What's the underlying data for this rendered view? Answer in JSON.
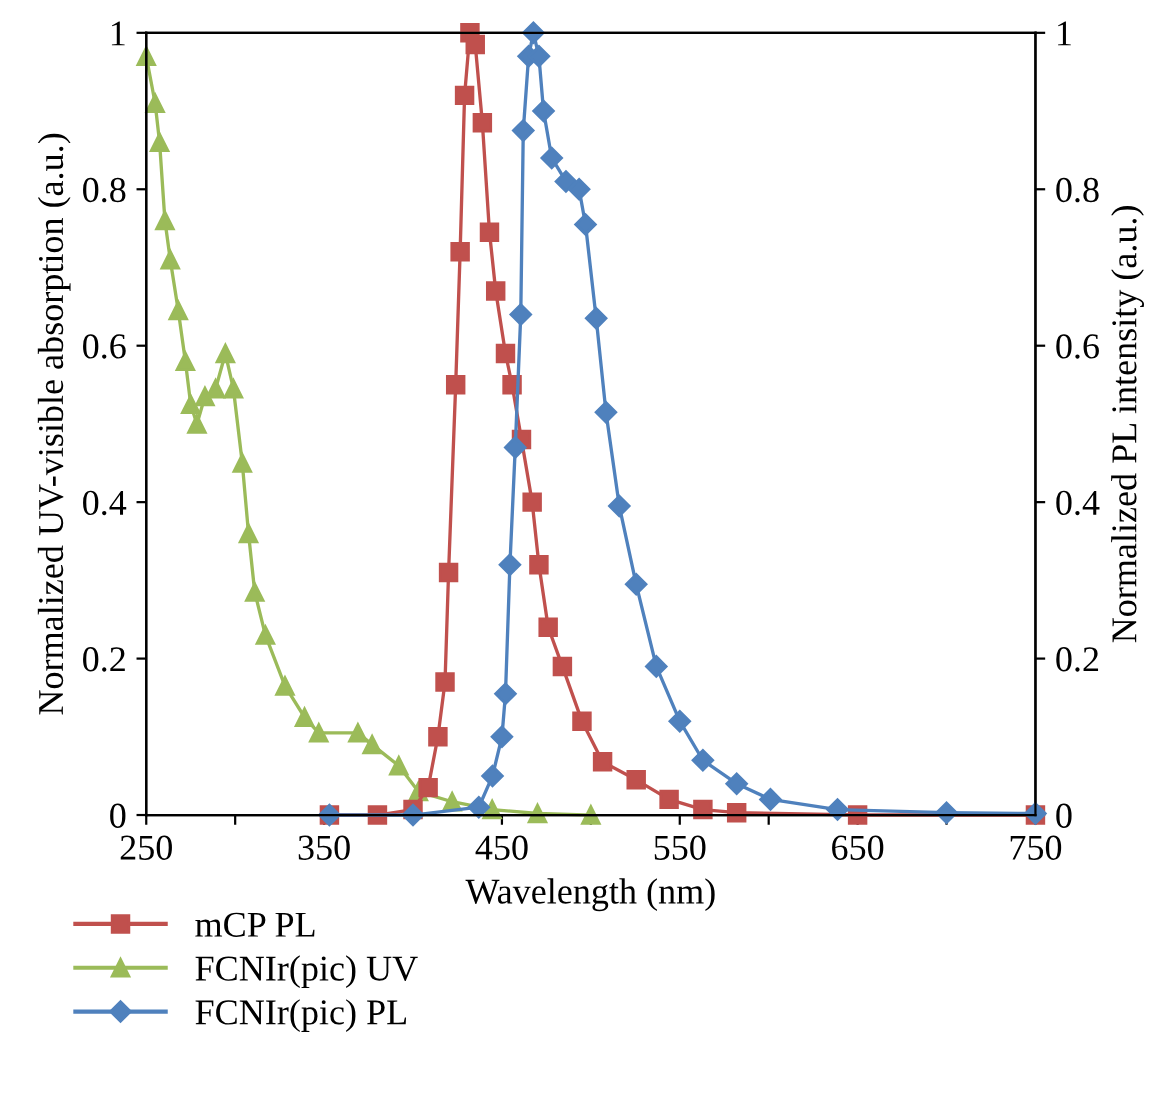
{
  "chart_data": {
    "type": "line",
    "xlabel": "Wavelength (nm)",
    "ylabel": "Normalized UV-visible absorption (a.u.)",
    "y2label": "Normalized PL intensity (a.u.)",
    "xlim": [
      250,
      750
    ],
    "xticks": [
      250,
      {
        "value": 300,
        "label": null
      },
      350,
      {
        "value": 400,
        "label": null
      },
      450,
      {
        "value": 500,
        "label": null
      },
      550,
      {
        "value": 600,
        "label": null
      },
      650,
      {
        "value": 700,
        "label": null
      },
      750
    ],
    "ylim": [
      0,
      1
    ],
    "yticks": [
      0,
      0.2,
      0.4,
      0.6,
      0.8,
      1
    ],
    "y2lim": [
      0,
      1
    ],
    "y2ticks": [
      0,
      0.2,
      0.4,
      0.6,
      0.8,
      1
    ],
    "grid": false,
    "legend": "bottom left",
    "line_style": "solid",
    "series": [
      {
        "name": "mCP PL",
        "color": "#c0504d",
        "marker": "square",
        "axis": "y2",
        "x": [
          353,
          380,
          400,
          408.5,
          414,
          418,
          420,
          424,
          426.5,
          429,
          432,
          435,
          439,
          443,
          446.5,
          452,
          455.7,
          461,
          467,
          470.8,
          476,
          484,
          495,
          506.6,
          525.5,
          544,
          563,
          582,
          650,
          750
        ],
        "values": [
          0,
          0,
          0.007,
          0.035,
          0.1,
          0.17,
          0.31,
          0.55,
          0.72,
          0.92,
          1.0,
          0.985,
          0.885,
          0.745,
          0.67,
          0.59,
          0.55,
          0.48,
          0.4,
          0.32,
          0.24,
          0.19,
          0.12,
          0.068,
          0.045,
          0.02,
          0.007,
          0.003,
          0,
          0
        ]
      },
      {
        "name": "FCNIr(pic) UV",
        "color": "#9bbb59",
        "marker": "triangle",
        "x": [
          250,
          255,
          257.5,
          260.5,
          263.5,
          268,
          272,
          275,
          278.5,
          283,
          289,
          294.5,
          299,
          304,
          307.5,
          311,
          317,
          328,
          339,
          347,
          369,
          377,
          392,
          403,
          422,
          444.5,
          470,
          500
        ],
        "values": [
          0.97,
          0.91,
          0.86,
          0.76,
          0.71,
          0.645,
          0.58,
          0.525,
          0.5,
          0.535,
          0.545,
          0.59,
          0.545,
          0.45,
          0.36,
          0.285,
          0.23,
          0.165,
          0.125,
          0.105,
          0.105,
          0.09,
          0.063,
          0.03,
          0.017,
          0.007,
          0.002,
          0
        ]
      },
      {
        "name": "FCNIr(pic) PL",
        "color": "#4f81bd",
        "marker": "diamond",
        "axis": "y2",
        "x": [
          353,
          400,
          437,
          444.7,
          450,
          452,
          454.5,
          457.5,
          460.6,
          462,
          465,
          467.7,
          470.8,
          473.4,
          478,
          486,
          493.4,
          497,
          503,
          508.5,
          516,
          525.5,
          536.8,
          550,
          563,
          582,
          601,
          638.7,
          700,
          750
        ],
        "values": [
          0,
          0,
          0.01,
          0.05,
          0.1,
          0.155,
          0.32,
          0.47,
          0.64,
          0.875,
          0.97,
          1.0,
          0.97,
          0.9,
          0.84,
          0.81,
          0.8,
          0.755,
          0.635,
          0.515,
          0.395,
          0.295,
          0.19,
          0.12,
          0.07,
          0.04,
          0.02,
          0.007,
          0.003,
          0.002
        ]
      }
    ]
  }
}
